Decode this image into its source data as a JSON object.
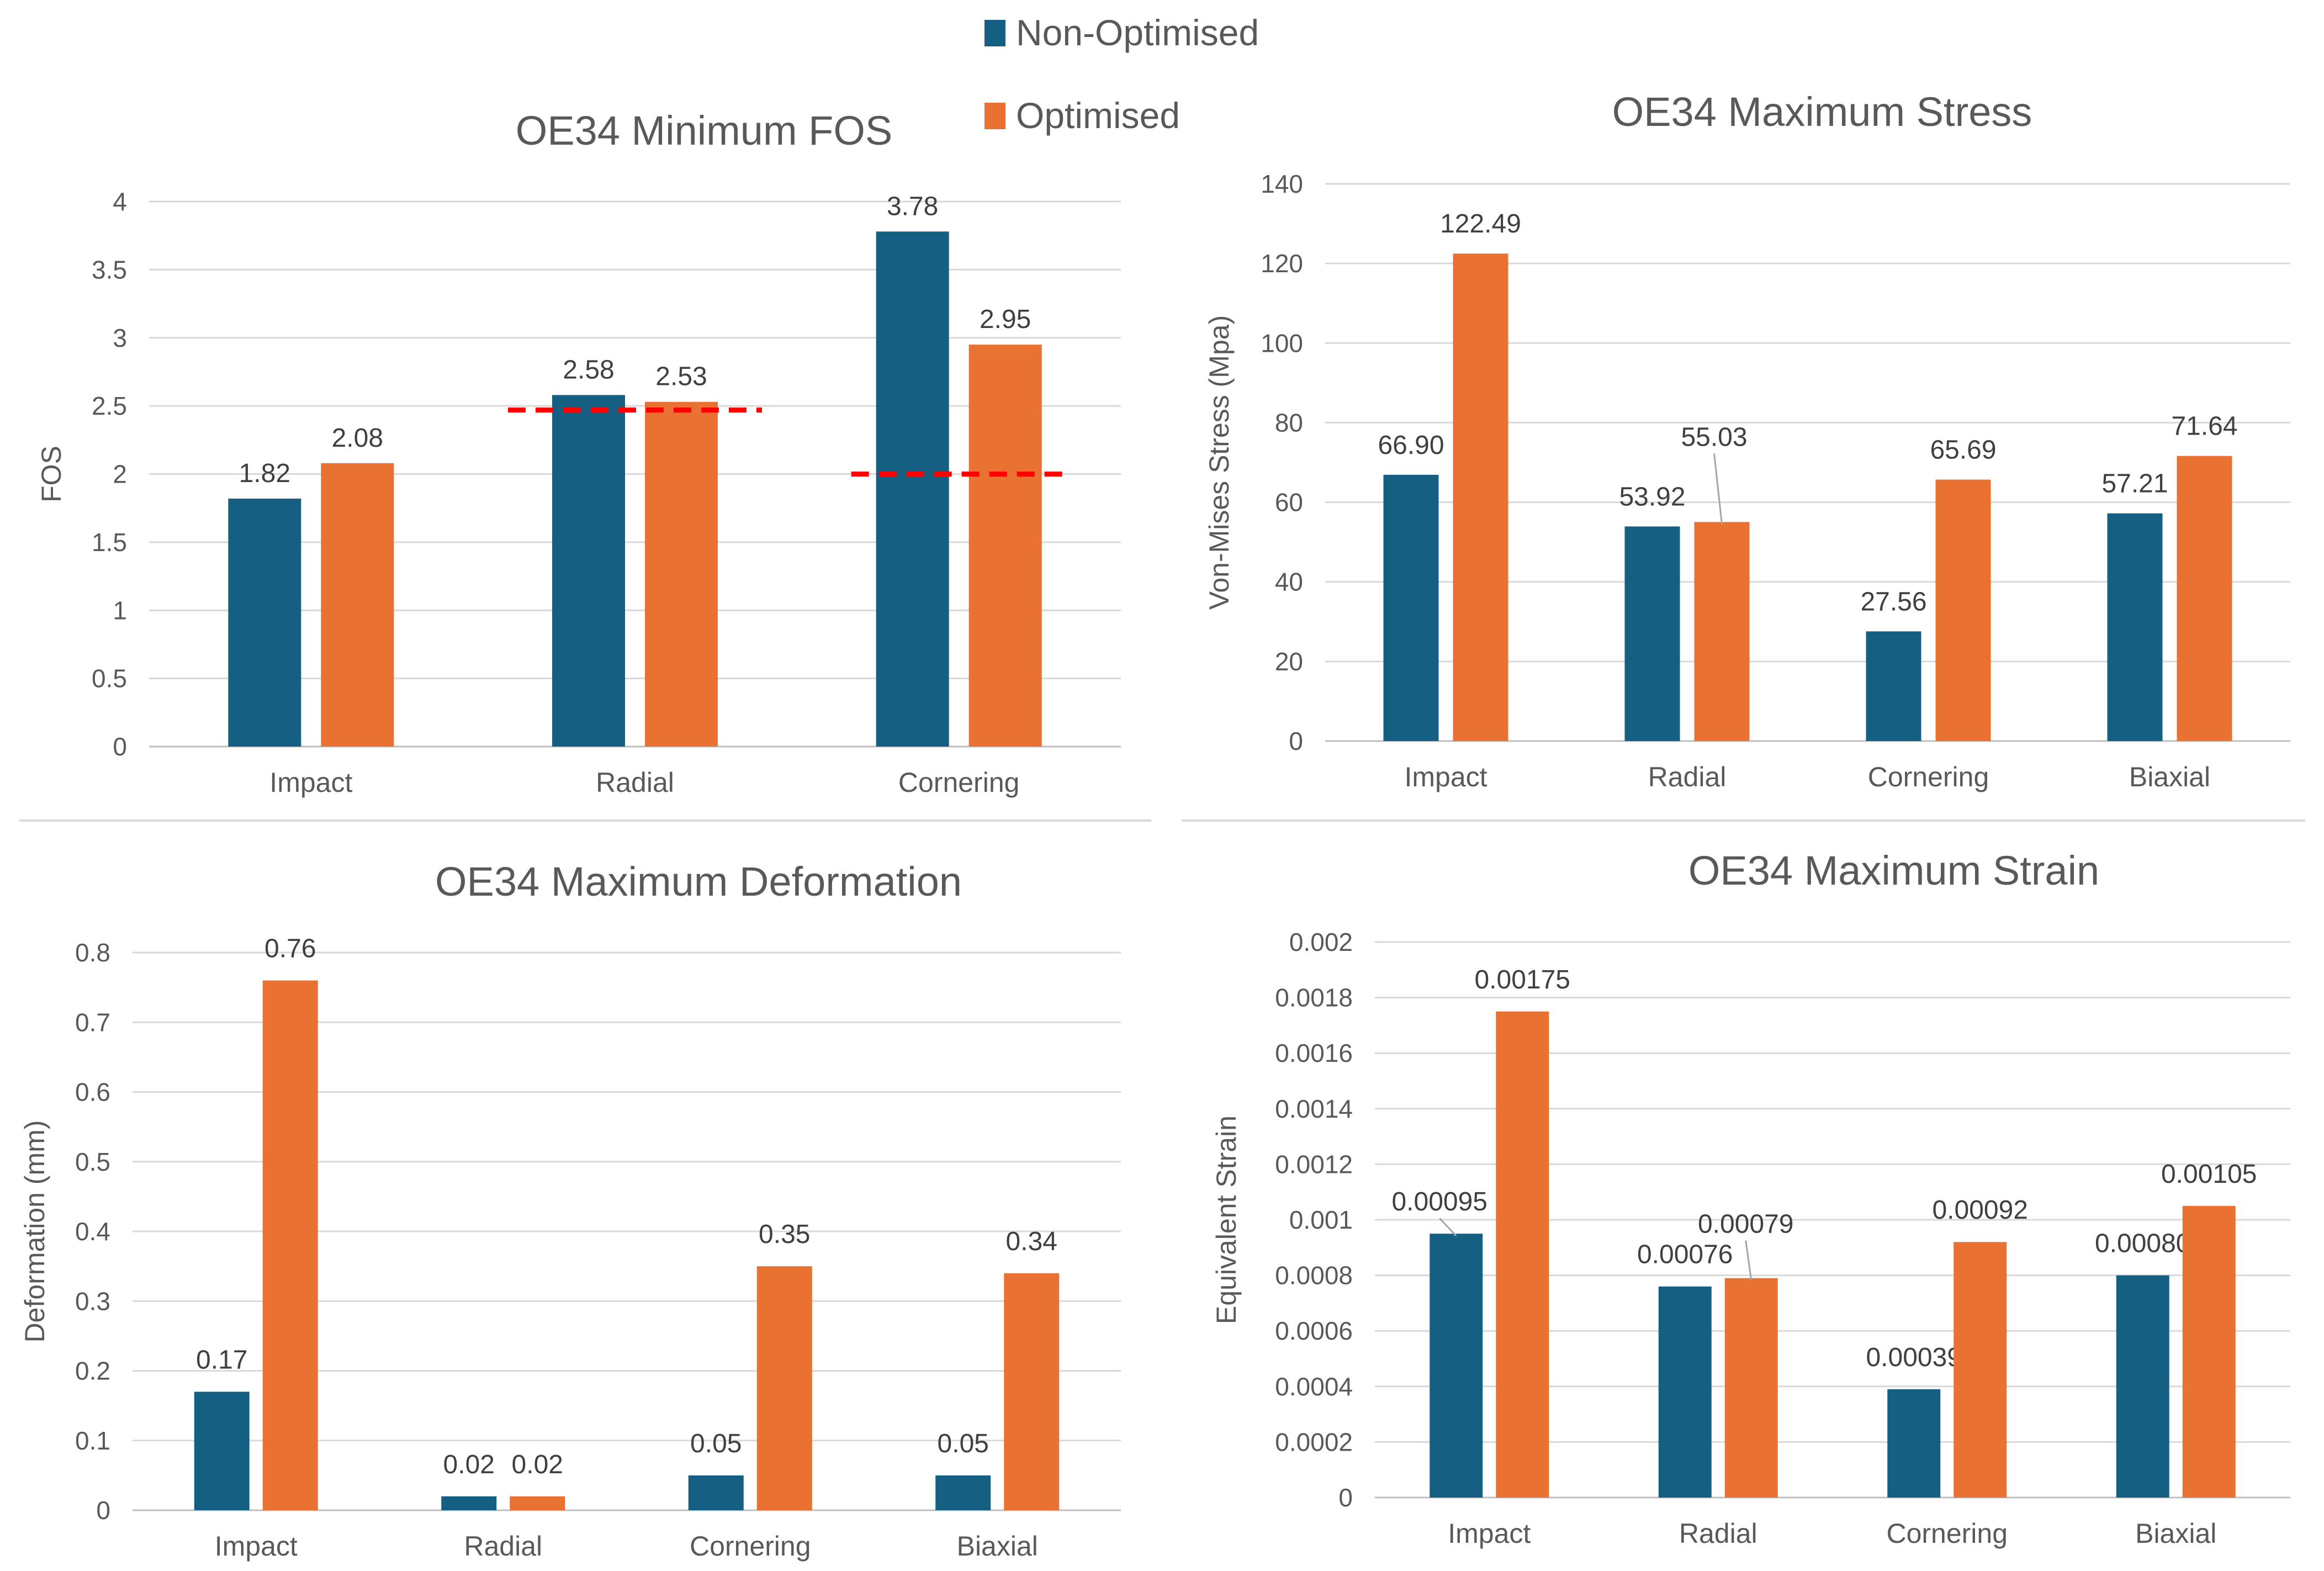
{
  "legend": {
    "items": [
      {
        "name": "Non-Optimised",
        "color": "#155F82"
      },
      {
        "name": "Optimised",
        "color": "#E97132"
      }
    ]
  },
  "chart_data": [
    {
      "id": "fos",
      "type": "bar",
      "title": "OE34 Minimum FOS",
      "xlabel": "",
      "ylabel": "FOS",
      "categories": [
        "Impact",
        "Radial",
        "Cornering"
      ],
      "series": [
        {
          "name": "Non-Optimised",
          "values": [
            1.82,
            2.58,
            3.78
          ],
          "labels": [
            "1.82",
            "2.58",
            "3.78"
          ]
        },
        {
          "name": "Optimised",
          "values": [
            2.08,
            2.53,
            2.95
          ],
          "labels": [
            "2.08",
            "2.53",
            "2.95"
          ]
        }
      ],
      "ylim": [
        0,
        4
      ],
      "yticks": [
        0,
        0.5,
        1,
        1.5,
        2,
        2.5,
        3,
        3.5,
        4
      ],
      "ytick_labels": [
        "0",
        "0.5",
        "1",
        "1.5",
        "2",
        "2.5",
        "3",
        "3.5",
        "4"
      ],
      "grid": true,
      "reference_lines": [
        {
          "category": "Radial",
          "value": 2.47,
          "style": "dashed",
          "color": "#FF0000"
        },
        {
          "category": "Cornering",
          "value": 2.0,
          "style": "dashed",
          "color": "#FF0000"
        }
      ]
    },
    {
      "id": "stress",
      "type": "bar",
      "title": "OE34 Maximum Stress",
      "xlabel": "",
      "ylabel": "Von-Mises Stress (Mpa)",
      "categories": [
        "Impact",
        "Radial",
        "Cornering",
        "Biaxial"
      ],
      "series": [
        {
          "name": "Non-Optimised",
          "values": [
            66.9,
            53.92,
            27.56,
            57.21
          ],
          "labels": [
            "66.90",
            "53.92",
            "27.56",
            "57.21"
          ]
        },
        {
          "name": "Optimised",
          "values": [
            122.49,
            55.03,
            65.69,
            71.64
          ],
          "labels": [
            "122.49",
            "55.03",
            "65.69",
            "71.64"
          ]
        }
      ],
      "ylim": [
        0,
        140
      ],
      "yticks": [
        0,
        20,
        40,
        60,
        80,
        100,
        120,
        140
      ],
      "ytick_labels": [
        "0",
        "20",
        "40",
        "60",
        "80",
        "100",
        "120",
        "140"
      ],
      "grid": true
    },
    {
      "id": "deformation",
      "type": "bar",
      "title": "OE34 Maximum Deformation",
      "xlabel": "",
      "ylabel": "Deformation (mm)",
      "categories": [
        "Impact",
        "Radial",
        "Cornering",
        "Biaxial"
      ],
      "series": [
        {
          "name": "Non-Optimised",
          "values": [
            0.17,
            0.02,
            0.05,
            0.05
          ],
          "labels": [
            "0.17",
            "0.02",
            "0.05",
            "0.05"
          ]
        },
        {
          "name": "Optimised",
          "values": [
            0.76,
            0.02,
            0.35,
            0.34
          ],
          "labels": [
            "0.76",
            "0.02",
            "0.35",
            "0.34"
          ]
        }
      ],
      "ylim": [
        0,
        0.8
      ],
      "yticks": [
        0,
        0.1,
        0.2,
        0.3,
        0.4,
        0.5,
        0.6,
        0.7,
        0.8
      ],
      "ytick_labels": [
        "0",
        "0.1",
        "0.2",
        "0.3",
        "0.4",
        "0.5",
        "0.6",
        "0.7",
        "0.8"
      ],
      "grid": true
    },
    {
      "id": "strain",
      "type": "bar",
      "title": "OE34 Maximum Strain",
      "xlabel": "",
      "ylabel": "Equivalent Strain",
      "categories": [
        "Impact",
        "Radial",
        "Cornering",
        "Biaxial"
      ],
      "series": [
        {
          "name": "Non-Optimised",
          "values": [
            0.00095,
            0.00076,
            0.00039,
            0.0008
          ],
          "labels": [
            "0.00095",
            "0.00076",
            "0.00039",
            "0.00080"
          ]
        },
        {
          "name": "Optimised",
          "values": [
            0.00175,
            0.00079,
            0.00092,
            0.00105
          ],
          "labels": [
            "0.00175",
            "0.00079",
            "0.00092",
            "0.00105"
          ]
        }
      ],
      "ylim": [
        0,
        0.002
      ],
      "yticks": [
        0,
        0.0002,
        0.0004,
        0.0006,
        0.0008,
        0.001,
        0.0012,
        0.0014,
        0.0016,
        0.0018,
        0.002
      ],
      "ytick_labels": [
        "0",
        "0.0002",
        "0.0004",
        "0.0006",
        "0.0008",
        "0.001",
        "0.0012",
        "0.0014",
        "0.0016",
        "0.0018",
        "0.002"
      ],
      "grid": true
    }
  ]
}
